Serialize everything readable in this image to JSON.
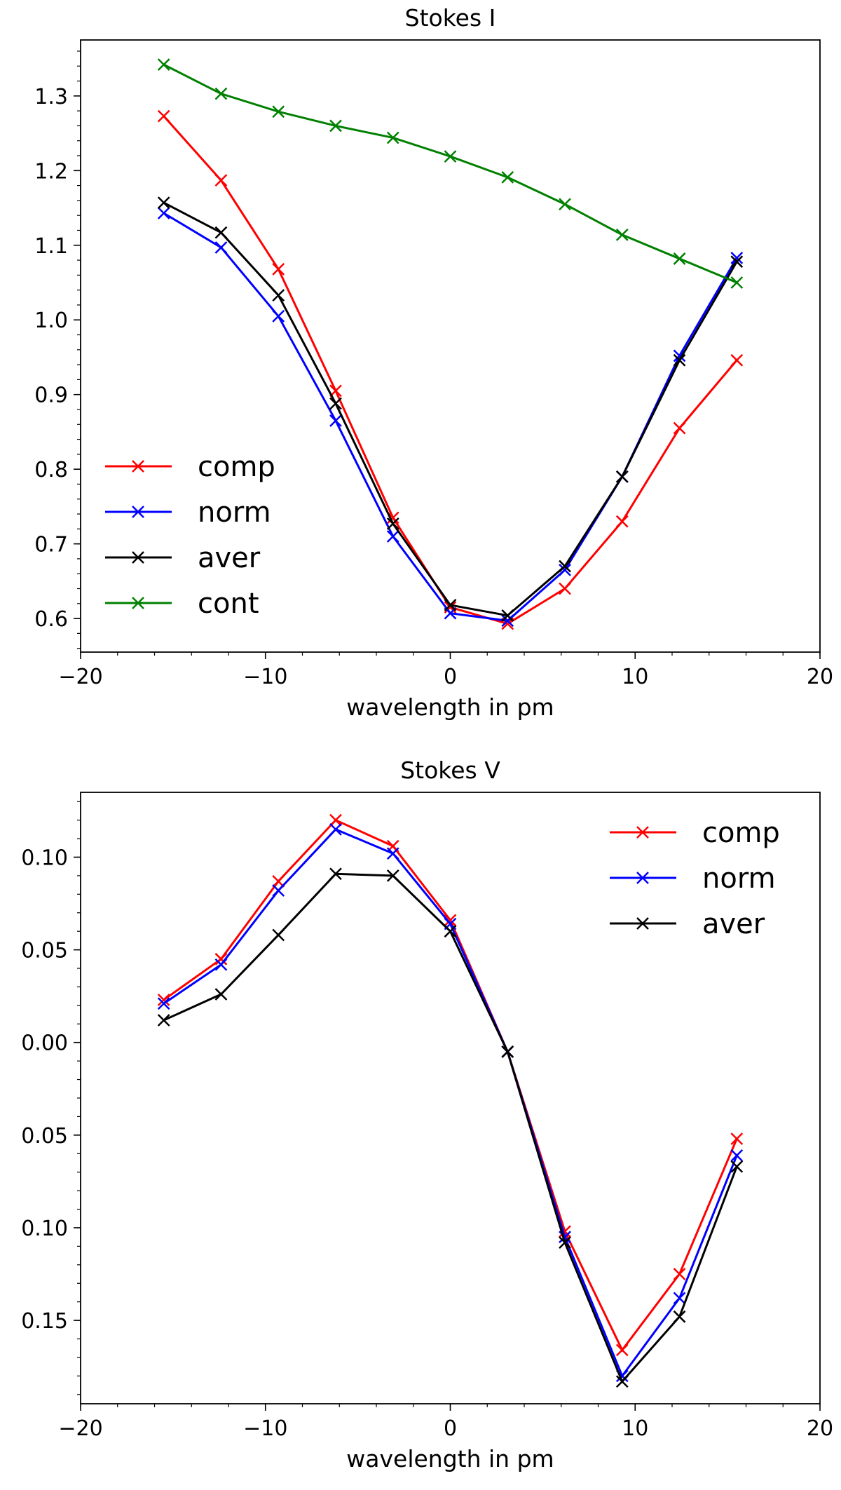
{
  "chart_data": [
    {
      "type": "line",
      "title": "Stokes I",
      "xlabel": "wavelength in pm",
      "ylabel": "",
      "xlim": [
        -20,
        20
      ],
      "ylim": [
        0.555,
        1.375
      ],
      "x_ticks": [
        -20,
        -10,
        0,
        10,
        20
      ],
      "x_tick_labels": [
        "−20",
        "−10",
        "0",
        "10",
        "20"
      ],
      "y_ticks": [
        0.6,
        0.7,
        0.8,
        0.9,
        1.0,
        1.1,
        1.2,
        1.3
      ],
      "y_tick_labels": [
        "0.6",
        "0.7",
        "0.8",
        "0.9",
        "1.0",
        "1.1",
        "1.2",
        "1.3"
      ],
      "marker": "x",
      "legend_position": "lower-left",
      "x": [
        -15.5,
        -12.4,
        -9.3,
        -6.2,
        -3.1,
        0.0,
        3.1,
        6.2,
        9.3,
        12.4,
        15.5
      ],
      "series": [
        {
          "name": "comp",
          "color": "#ff0000",
          "values": [
            1.273,
            1.187,
            1.068,
            0.905,
            0.735,
            0.615,
            0.593,
            0.64,
            0.73,
            0.855,
            0.946
          ]
        },
        {
          "name": "norm",
          "color": "#0000ff",
          "values": [
            1.143,
            1.097,
            1.005,
            0.865,
            0.71,
            0.607,
            0.597,
            0.665,
            0.79,
            0.952,
            1.083
          ]
        },
        {
          "name": "aver",
          "color": "#000000",
          "values": [
            1.157,
            1.117,
            1.033,
            0.888,
            0.727,
            0.618,
            0.604,
            0.67,
            0.79,
            0.946,
            1.078
          ]
        },
        {
          "name": "cont",
          "color": "#008000",
          "values": [
            1.342,
            1.303,
            1.279,
            1.26,
            1.244,
            1.219,
            1.191,
            1.155,
            1.114,
            1.082,
            1.05
          ]
        }
      ]
    },
    {
      "type": "line",
      "title": "Stokes V",
      "xlabel": "wavelength in pm",
      "ylabel": "",
      "xlim": [
        -20,
        20
      ],
      "ylim": [
        -0.195,
        0.135
      ],
      "x_ticks": [
        -20,
        -10,
        0,
        10,
        20
      ],
      "x_tick_labels": [
        "−20",
        "−10",
        "0",
        "10",
        "20"
      ],
      "y_ticks": [
        0.1,
        0.05,
        0.0,
        -0.05,
        -0.1,
        -0.15
      ],
      "y_tick_labels": [
        "0.10",
        "0.05",
        "0.00",
        "0.05",
        "0.10",
        "0.15"
      ],
      "marker": "x",
      "legend_position": "upper-right",
      "x": [
        -15.5,
        -12.4,
        -9.3,
        -6.2,
        -3.1,
        0.0,
        3.1,
        6.2,
        9.3,
        12.4,
        15.5
      ],
      "series": [
        {
          "name": "comp",
          "color": "#ff0000",
          "values": [
            0.023,
            0.045,
            0.087,
            0.12,
            0.106,
            0.066,
            -0.005,
            -0.102,
            -0.166,
            -0.125,
            -0.052
          ]
        },
        {
          "name": "norm",
          "color": "#0000ff",
          "values": [
            0.021,
            0.042,
            0.082,
            0.115,
            0.102,
            0.064,
            -0.005,
            -0.105,
            -0.18,
            -0.138,
            -0.061
          ]
        },
        {
          "name": "aver",
          "color": "#000000",
          "values": [
            0.012,
            0.026,
            0.058,
            0.091,
            0.09,
            0.06,
            -0.005,
            -0.108,
            -0.183,
            -0.148,
            -0.067
          ]
        }
      ]
    }
  ]
}
